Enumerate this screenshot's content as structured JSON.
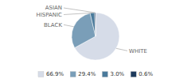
{
  "chart_data": {
    "type": "pie",
    "categories": [
      "WHITE",
      "BLACK",
      "HISPANIC",
      "ASIAN"
    ],
    "values": [
      66.9,
      29.4,
      3.0,
      0.6
    ],
    "value_labels": [
      "66.9%",
      "29.4%",
      "3.0%",
      "0.6%"
    ],
    "colors": [
      "#d6dce8",
      "#7a9eb8",
      "#4a7a9b",
      "#1e3a5c"
    ],
    "legend": "bottom"
  }
}
